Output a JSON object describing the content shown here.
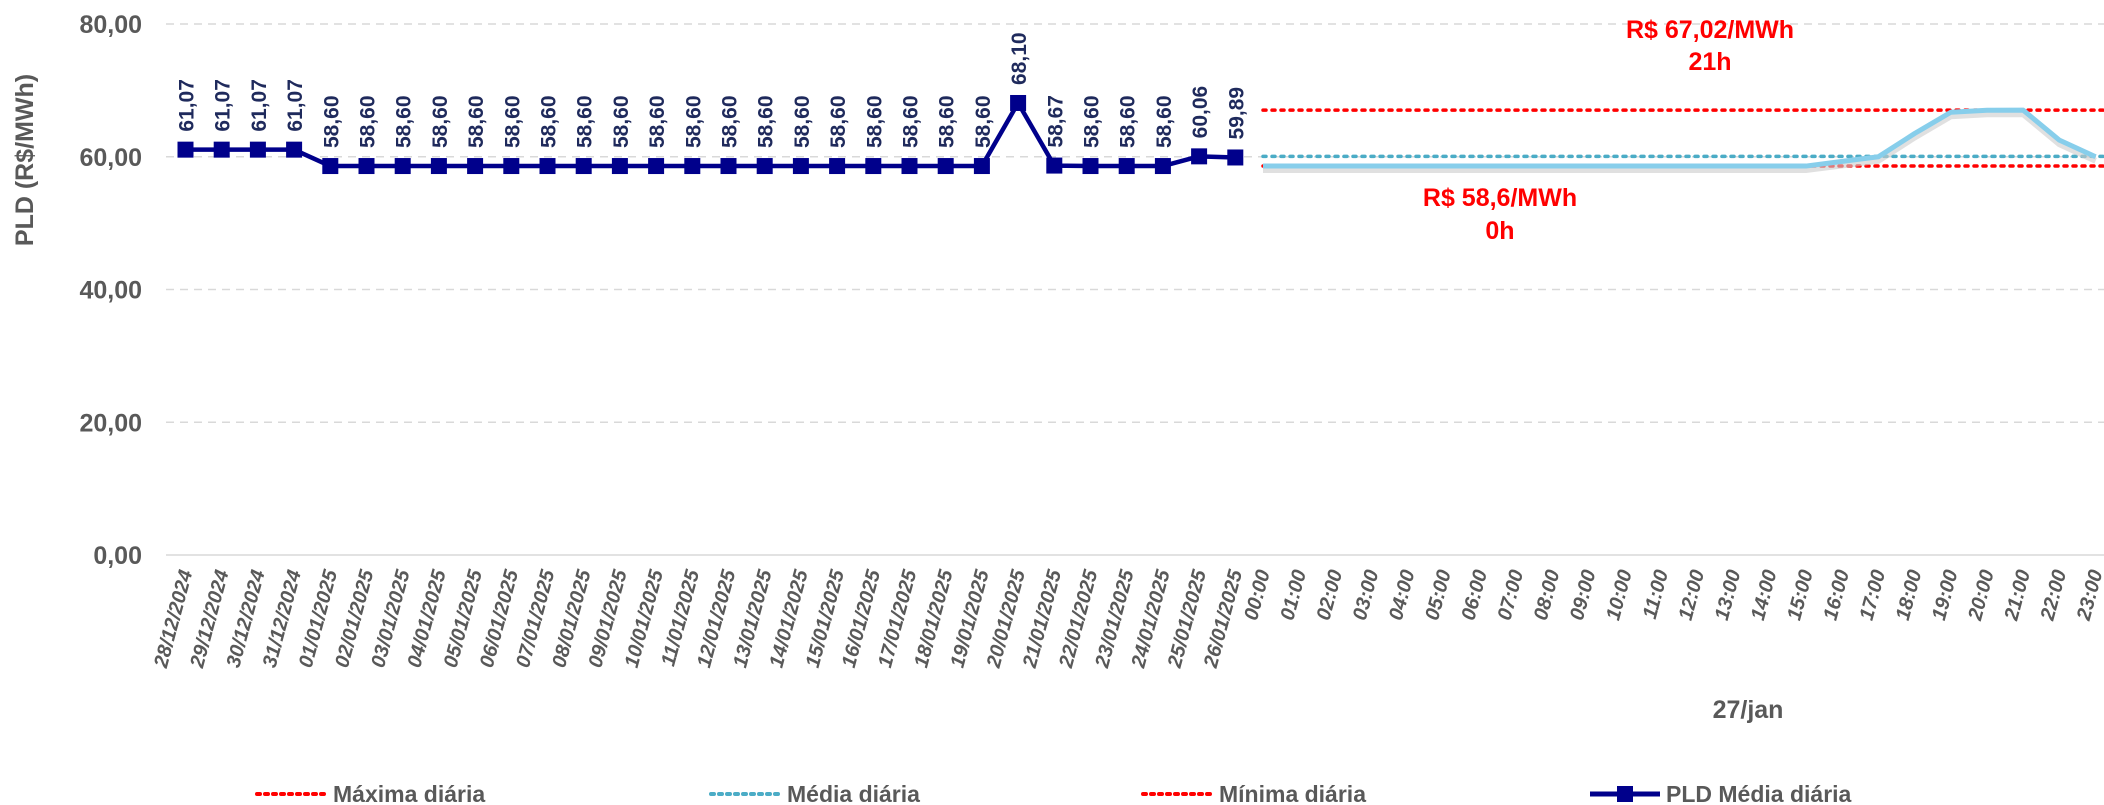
{
  "chart_data": {
    "type": "line",
    "ylabel": "PLD (R$/MWh)",
    "ylim": [
      0,
      80
    ],
    "y_ticks": [
      "0,00",
      "20,00",
      "40,00",
      "60,00",
      "80,00"
    ],
    "y_tick_values": [
      0,
      20,
      40,
      60,
      80
    ],
    "grid": "horizontal dashed",
    "daily": {
      "name": "PLD Média diária",
      "categories": [
        "28/12/2024",
        "29/12/2024",
        "30/12/2024",
        "31/12/2024",
        "01/01/2025",
        "02/01/2025",
        "03/01/2025",
        "04/01/2025",
        "05/01/2025",
        "06/01/2025",
        "07/01/2025",
        "08/01/2025",
        "09/01/2025",
        "10/01/2025",
        "11/01/2025",
        "12/01/2025",
        "13/01/2025",
        "14/01/2025",
        "15/01/2025",
        "16/01/2025",
        "17/01/2025",
        "18/01/2025",
        "19/01/2025",
        "20/01/2025",
        "21/01/2025",
        "22/01/2025",
        "23/01/2025",
        "24/01/2025",
        "25/01/2025",
        "26/01/2025"
      ],
      "values": [
        61.07,
        61.07,
        61.07,
        61.07,
        58.6,
        58.6,
        58.6,
        58.6,
        58.6,
        58.6,
        58.6,
        58.6,
        58.6,
        58.6,
        58.6,
        58.6,
        58.6,
        58.6,
        58.6,
        58.6,
        58.6,
        58.6,
        58.6,
        68.1,
        58.67,
        58.6,
        58.6,
        58.6,
        60.06,
        59.89
      ],
      "labels": [
        "61,07",
        "61,07",
        "61,07",
        "61,07",
        "58,60",
        "58,60",
        "58,60",
        "58,60",
        "58,60",
        "58,60",
        "58,60",
        "58,60",
        "58,60",
        "58,60",
        "58,60",
        "58,60",
        "58,60",
        "58,60",
        "58,60",
        "58,60",
        "58,60",
        "58,60",
        "58,60",
        "68,10",
        "58,67",
        "58,60",
        "58,60",
        "58,60",
        "60,06",
        "59,89"
      ],
      "color": "#00008B"
    },
    "hourly": {
      "day_label": "27/jan",
      "categories": [
        "00:00",
        "01:00",
        "02:00",
        "03:00",
        "04:00",
        "05:00",
        "06:00",
        "07:00",
        "08:00",
        "09:00",
        "10:00",
        "11:00",
        "12:00",
        "13:00",
        "14:00",
        "15:00",
        "16:00",
        "17:00",
        "18:00",
        "19:00",
        "20:00",
        "21:00",
        "22:00",
        "23:00"
      ],
      "values": [
        58.6,
        58.6,
        58.6,
        58.6,
        58.6,
        58.6,
        58.6,
        58.6,
        58.6,
        58.6,
        58.6,
        58.6,
        58.6,
        58.6,
        58.6,
        58.6,
        59.3,
        60.0,
        63.5,
        66.7,
        67.0,
        67.02,
        62.5,
        60.0
      ],
      "color": "#87CEEB",
      "max": 67.02,
      "mean": 60.05,
      "min": 58.6
    },
    "annotations": {
      "max_line1": "R$ 67,02/MWh",
      "max_line2": "21h",
      "min_line1": "R$ 58,6/MWh",
      "min_line2": "0h"
    },
    "legend": {
      "placement": "bottom",
      "items": [
        {
          "label": "Máxima diária",
          "color": "#FF0000",
          "style": "dotted"
        },
        {
          "label": "Média diária",
          "color": "#4BACC6",
          "style": "dotted"
        },
        {
          "label": "Mínima diária",
          "color": "#FF0000",
          "style": "dotted"
        },
        {
          "label": "PLD Média diária",
          "color": "#00008B",
          "style": "line-square"
        }
      ]
    }
  }
}
